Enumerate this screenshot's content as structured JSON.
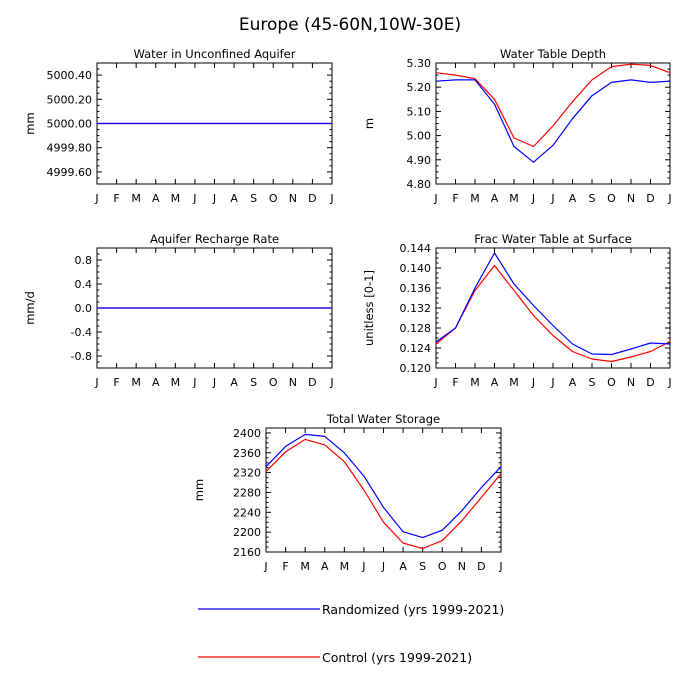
{
  "title": "Europe (45-60N,10W-30E)",
  "months": [
    "J",
    "F",
    "M",
    "A",
    "M",
    "J",
    "J",
    "A",
    "S",
    "O",
    "N",
    "D",
    "J"
  ],
  "colors": {
    "randomized": "#0000ff",
    "control": "#ff0000"
  },
  "legend": [
    {
      "key": "randomized",
      "label": "Randomized (yrs 1999-2021)"
    },
    {
      "key": "control",
      "label": "Control (yrs 1999-2021)"
    }
  ],
  "chart_data": [
    {
      "id": "aquifer",
      "type": "line",
      "title": "Water in Unconfined Aquifer",
      "xlabel": "",
      "ylabel": "mm",
      "ylim": [
        4999.5,
        5000.5
      ],
      "yticks": [
        4999.6,
        4999.8,
        5000.0,
        5000.2,
        5000.4
      ],
      "ytick_labels": [
        "4999.60",
        "4999.80",
        "5000.00",
        "5000.20",
        "5000.40"
      ],
      "series": [
        {
          "key": "control",
          "name": "Control (yrs 1999-2021)",
          "values": [
            5000,
            5000,
            5000,
            5000,
            5000,
            5000,
            5000,
            5000,
            5000,
            5000,
            5000,
            5000,
            5000
          ]
        },
        {
          "key": "randomized",
          "name": "Randomized (yrs 1999-2021)",
          "values": [
            5000,
            5000,
            5000,
            5000,
            5000,
            5000,
            5000,
            5000,
            5000,
            5000,
            5000,
            5000,
            5000
          ]
        }
      ]
    },
    {
      "id": "wtd",
      "type": "line",
      "title": "Water Table Depth",
      "xlabel": "",
      "ylabel": "m",
      "ylim": [
        4.8,
        5.3
      ],
      "yticks": [
        4.8,
        4.9,
        5.0,
        5.1,
        5.2,
        5.3
      ],
      "ytick_labels": [
        "4.80",
        "4.90",
        "5.00",
        "5.10",
        "5.20",
        "5.30"
      ],
      "series": [
        {
          "key": "control",
          "name": "Control (yrs 1999-2021)",
          "values": [
            5.26,
            5.25,
            5.235,
            5.15,
            4.99,
            4.955,
            5.04,
            5.14,
            5.23,
            5.285,
            5.295,
            5.29,
            5.26
          ]
        },
        {
          "key": "randomized",
          "name": "Randomized (yrs 1999-2021)",
          "values": [
            5.225,
            5.23,
            5.23,
            5.13,
            4.955,
            4.89,
            4.96,
            5.07,
            5.165,
            5.22,
            5.23,
            5.22,
            5.225
          ]
        }
      ]
    },
    {
      "id": "recharge",
      "type": "line",
      "title": "Aquifer Recharge Rate",
      "xlabel": "",
      "ylabel": "mm/d",
      "ylim": [
        -1.0,
        1.0
      ],
      "yticks": [
        -0.8,
        -0.4,
        0.0,
        0.4,
        0.8
      ],
      "ytick_labels": [
        "-0.8",
        "-0.4",
        "0.0",
        "0.4",
        "0.8"
      ],
      "series": [
        {
          "key": "control",
          "name": "Control (yrs 1999-2021)",
          "values": [
            0,
            0,
            0,
            0,
            0,
            0,
            0,
            0,
            0,
            0,
            0,
            0,
            0
          ]
        },
        {
          "key": "randomized",
          "name": "Randomized (yrs 1999-2021)",
          "values": [
            0,
            0,
            0,
            0,
            0,
            0,
            0,
            0,
            0,
            0,
            0,
            0,
            0
          ]
        }
      ]
    },
    {
      "id": "fracwt",
      "type": "line",
      "title": "Frac Water Table at Surface",
      "xlabel": "",
      "ylabel": "unitless [0-1]",
      "ylim": [
        0.12,
        0.144
      ],
      "yticks": [
        0.12,
        0.124,
        0.128,
        0.132,
        0.136,
        0.14,
        0.144
      ],
      "ytick_labels": [
        "0.120",
        "0.124",
        "0.128",
        "0.132",
        "0.136",
        "0.140",
        "0.144"
      ],
      "series": [
        {
          "key": "control",
          "name": "Control (yrs 1999-2021)",
          "values": [
            0.1248,
            0.128,
            0.1355,
            0.1405,
            0.1355,
            0.1305,
            0.1265,
            0.1233,
            0.1218,
            0.1213,
            0.1222,
            0.1233,
            0.1253
          ]
        },
        {
          "key": "randomized",
          "name": "Randomized (yrs 1999-2021)",
          "values": [
            0.1252,
            0.128,
            0.136,
            0.143,
            0.1368,
            0.1325,
            0.1285,
            0.1248,
            0.1228,
            0.1227,
            0.1238,
            0.125,
            0.1248
          ]
        }
      ]
    },
    {
      "id": "tws",
      "type": "line",
      "title": "Total Water Storage",
      "xlabel": "",
      "ylabel": "mm",
      "ylim": [
        2160,
        2410
      ],
      "yticks": [
        2160,
        2200,
        2240,
        2280,
        2320,
        2360,
        2400
      ],
      "ytick_labels": [
        "2160",
        "2200",
        "2240",
        "2280",
        "2320",
        "2360",
        "2400"
      ],
      "series": [
        {
          "key": "control",
          "name": "Control (yrs 1999-2021)",
          "values": [
            2322,
            2362,
            2387,
            2376,
            2342,
            2285,
            2220,
            2178,
            2167,
            2183,
            2223,
            2270,
            2318
          ]
        },
        {
          "key": "randomized",
          "name": "Randomized (yrs 1999-2021)",
          "values": [
            2332,
            2373,
            2397,
            2393,
            2360,
            2313,
            2250,
            2201,
            2189,
            2204,
            2243,
            2290,
            2332
          ]
        }
      ]
    }
  ]
}
